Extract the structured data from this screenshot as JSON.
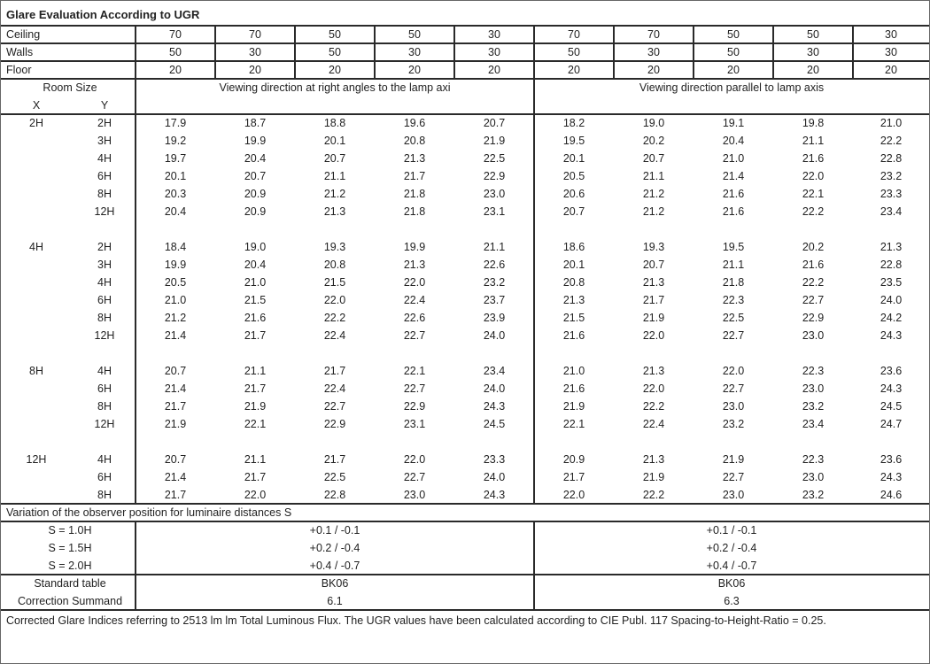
{
  "title": "Glare Evaluation According to UGR",
  "reflectances": [
    {
      "label": "Ceiling",
      "values": [
        "70",
        "70",
        "50",
        "50",
        "30",
        "70",
        "70",
        "50",
        "50",
        "30"
      ]
    },
    {
      "label": "Walls",
      "values": [
        "50",
        "30",
        "50",
        "30",
        "30",
        "50",
        "30",
        "50",
        "30",
        "30"
      ]
    },
    {
      "label": "Floor",
      "values": [
        "20",
        "20",
        "20",
        "20",
        "20",
        "20",
        "20",
        "20",
        "20",
        "20"
      ]
    }
  ],
  "header": {
    "room_size": "Room Size",
    "x": "X",
    "y": "Y",
    "direction_right_angles": "Viewing direction at right angles to the lamp axi",
    "direction_parallel": "Viewing direction parallel to lamp axis"
  },
  "groups": [
    {
      "x": "2H",
      "rows": [
        {
          "y": "2H",
          "values": [
            "17.9",
            "18.7",
            "18.8",
            "19.6",
            "20.7",
            "18.2",
            "19.0",
            "19.1",
            "19.8",
            "21.0"
          ]
        },
        {
          "y": "3H",
          "values": [
            "19.2",
            "19.9",
            "20.1",
            "20.8",
            "21.9",
            "19.5",
            "20.2",
            "20.4",
            "21.1",
            "22.2"
          ]
        },
        {
          "y": "4H",
          "values": [
            "19.7",
            "20.4",
            "20.7",
            "21.3",
            "22.5",
            "20.1",
            "20.7",
            "21.0",
            "21.6",
            "22.8"
          ]
        },
        {
          "y": "6H",
          "values": [
            "20.1",
            "20.7",
            "21.1",
            "21.7",
            "22.9",
            "20.5",
            "21.1",
            "21.4",
            "22.0",
            "23.2"
          ]
        },
        {
          "y": "8H",
          "values": [
            "20.3",
            "20.9",
            "21.2",
            "21.8",
            "23.0",
            "20.6",
            "21.2",
            "21.6",
            "22.1",
            "23.3"
          ]
        },
        {
          "y": "12H",
          "values": [
            "20.4",
            "20.9",
            "21.3",
            "21.8",
            "23.1",
            "20.7",
            "21.2",
            "21.6",
            "22.2",
            "23.4"
          ]
        }
      ]
    },
    {
      "x": "4H",
      "rows": [
        {
          "y": "2H",
          "values": [
            "18.4",
            "19.0",
            "19.3",
            "19.9",
            "21.1",
            "18.6",
            "19.3",
            "19.5",
            "20.2",
            "21.3"
          ]
        },
        {
          "y": "3H",
          "values": [
            "19.9",
            "20.4",
            "20.8",
            "21.3",
            "22.6",
            "20.1",
            "20.7",
            "21.1",
            "21.6",
            "22.8"
          ]
        },
        {
          "y": "4H",
          "values": [
            "20.5",
            "21.0",
            "21.5",
            "22.0",
            "23.2",
            "20.8",
            "21.3",
            "21.8",
            "22.2",
            "23.5"
          ]
        },
        {
          "y": "6H",
          "values": [
            "21.0",
            "21.5",
            "22.0",
            "22.4",
            "23.7",
            "21.3",
            "21.7",
            "22.3",
            "22.7",
            "24.0"
          ]
        },
        {
          "y": "8H",
          "values": [
            "21.2",
            "21.6",
            "22.2",
            "22.6",
            "23.9",
            "21.5",
            "21.9",
            "22.5",
            "22.9",
            "24.2"
          ]
        },
        {
          "y": "12H",
          "values": [
            "21.4",
            "21.7",
            "22.4",
            "22.7",
            "24.0",
            "21.6",
            "22.0",
            "22.7",
            "23.0",
            "24.3"
          ]
        }
      ]
    },
    {
      "x": "8H",
      "rows": [
        {
          "y": "4H",
          "values": [
            "20.7",
            "21.1",
            "21.7",
            "22.1",
            "23.4",
            "21.0",
            "21.3",
            "22.0",
            "22.3",
            "23.6"
          ]
        },
        {
          "y": "6H",
          "values": [
            "21.4",
            "21.7",
            "22.4",
            "22.7",
            "24.0",
            "21.6",
            "22.0",
            "22.7",
            "23.0",
            "24.3"
          ]
        },
        {
          "y": "8H",
          "values": [
            "21.7",
            "21.9",
            "22.7",
            "22.9",
            "24.3",
            "21.9",
            "22.2",
            "23.0",
            "23.2",
            "24.5"
          ]
        },
        {
          "y": "12H",
          "values": [
            "21.9",
            "22.1",
            "22.9",
            "23.1",
            "24.5",
            "22.1",
            "22.4",
            "23.2",
            "23.4",
            "24.7"
          ]
        }
      ]
    },
    {
      "x": "12H",
      "rows": [
        {
          "y": "4H",
          "values": [
            "20.7",
            "21.1",
            "21.7",
            "22.0",
            "23.3",
            "20.9",
            "21.3",
            "21.9",
            "22.3",
            "23.6"
          ]
        },
        {
          "y": "6H",
          "values": [
            "21.4",
            "21.7",
            "22.5",
            "22.7",
            "24.0",
            "21.7",
            "21.9",
            "22.7",
            "23.0",
            "24.3"
          ]
        },
        {
          "y": "8H",
          "values": [
            "21.7",
            "22.0",
            "22.8",
            "23.0",
            "24.3",
            "22.0",
            "22.2",
            "23.0",
            "23.2",
            "24.6"
          ]
        }
      ]
    }
  ],
  "variation": {
    "title": "Variation of the observer position for luminaire distances S",
    "rows": [
      {
        "label": "S = 1.0H",
        "right_angles": "+0.1 / -0.1",
        "parallel": "+0.1 / -0.1"
      },
      {
        "label": "S = 1.5H",
        "right_angles": "+0.2 / -0.4",
        "parallel": "+0.2 / -0.4"
      },
      {
        "label": "S = 2.0H",
        "right_angles": "+0.4 / -0.7",
        "parallel": "+0.4 / -0.7"
      }
    ]
  },
  "standard_table": {
    "label": "Standard table",
    "right_angles": "BK06",
    "parallel": "BK06"
  },
  "correction_summand": {
    "label": "Correction Summand",
    "right_angles": "6.1",
    "parallel": "6.3"
  },
  "footer": "Corrected Glare Indices referring to 2513 lm lm Total Luminous Flux. The UGR values have been calculated according to CIE Publ. 117    Spacing-to-Height-Ratio = 0.25."
}
